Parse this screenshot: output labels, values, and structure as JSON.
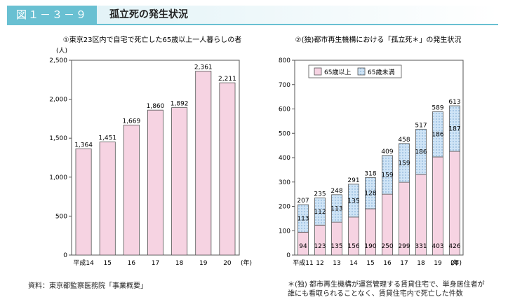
{
  "figure": {
    "number": "図１－３－９",
    "title": "孤立死の発生状況"
  },
  "source": "資料：東京都監察医務院「事業概要」",
  "footnote": [
    "＊(独) 都市再生機構が運営管理する賃貸住宅で、単身居住者が",
    "誰にも看取られることなく、賃貸住宅内で死亡した件数"
  ],
  "colors": {
    "pink": "#f6d3e2",
    "blue_dots": "#c3ddf3",
    "accent": "#69c0d2"
  },
  "chart_data": [
    {
      "type": "bar",
      "title": "①東京23区内で自宅で死亡した65歳以上一人暮らしの者",
      "ylabel": "(人)",
      "xlabel": "(年)",
      "categories": [
        "平成14",
        "15",
        "16",
        "17",
        "18",
        "19",
        "20"
      ],
      "values": [
        1364,
        1451,
        1669,
        1860,
        1892,
        2361,
        2211
      ],
      "value_labels": [
        "1,364",
        "1,451",
        "1,669",
        "1,860",
        "1,892",
        "2,361",
        "2,211"
      ],
      "ylim": [
        0,
        2500
      ],
      "yticks": [
        "0",
        "500",
        "1,000",
        "1,500",
        "2,000",
        "2,500"
      ],
      "grid": false
    },
    {
      "type": "bar",
      "stacked": true,
      "title": "②(独)都市再生機構における「孤立死＊」の発生状況",
      "xlabel": "(年)",
      "categories": [
        "平成11",
        "12",
        "13",
        "14",
        "15",
        "16",
        "17",
        "18",
        "19",
        "20"
      ],
      "series": [
        {
          "name": "65歳以上",
          "values": [
            94,
            123,
            135,
            156,
            190,
            250,
            299,
            331,
            403,
            426
          ]
        },
        {
          "name": "65歳未満",
          "values": [
            113,
            112,
            113,
            135,
            128,
            159,
            159,
            186,
            186,
            187
          ]
        }
      ],
      "totals": [
        207,
        235,
        248,
        291,
        318,
        409,
        458,
        517,
        589,
        613
      ],
      "ylim": [
        0,
        800
      ],
      "yticks": [
        "0",
        "100",
        "200",
        "300",
        "400",
        "500",
        "600",
        "700",
        "800"
      ],
      "legend": "top-left",
      "grid": false
    }
  ]
}
